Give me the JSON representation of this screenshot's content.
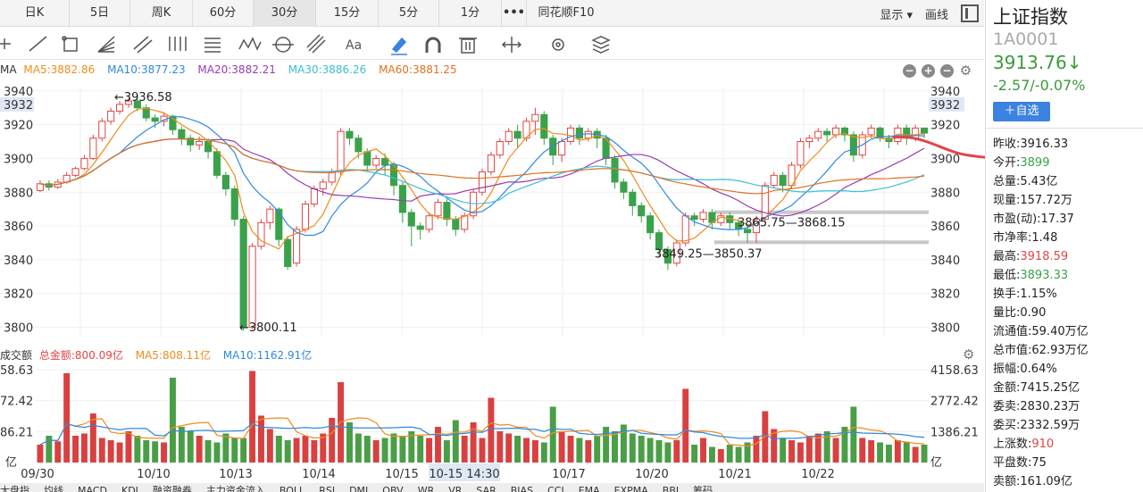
{
  "periods": [
    {
      "label": "日K"
    },
    {
      "label": "5日"
    },
    {
      "label": "周K"
    },
    {
      "label": "60分"
    },
    {
      "label": "30分",
      "active": true
    },
    {
      "label": "15分"
    },
    {
      "label": "5分"
    },
    {
      "label": "1分"
    },
    {
      "label": "•••"
    },
    {
      "label": "同花顺F10"
    }
  ],
  "header_right": {
    "display": "显示 ▾",
    "draw": "画线"
  },
  "tool_icons": [
    "ray-line-icon",
    "segment-icon",
    "rectangle-icon",
    "fan-icon",
    "channel-icon",
    "parallel-lines-icon",
    "fibonacci-icon",
    "wave-icon",
    "cycle-icon",
    "pitchfork-icon",
    "text-icon",
    "eraser-icon",
    "magnet-icon",
    "trash-icon",
    "resize-icon",
    "settings-icon",
    "layers-icon"
  ],
  "ma_legend": {
    "prefix": "MA",
    "items": [
      {
        "label": "MA5:3882.86",
        "color": "#f08c1e"
      },
      {
        "label": "MA10:3877.23",
        "color": "#2f8ae0"
      },
      {
        "label": "MA20:3882.21",
        "color": "#9b3bb0"
      },
      {
        "label": "MA30:3886.26",
        "color": "#3cc0d0"
      },
      {
        "label": "MA60:3881.25",
        "color": "#e07020"
      }
    ]
  },
  "vol_legend": {
    "title": "成交额",
    "items": [
      {
        "label": "总金额:800.09亿",
        "color": "#e04646"
      },
      {
        "label": "MA5:808.11亿",
        "color": "#f08c1e"
      },
      {
        "label": "MA10:1162.91亿",
        "color": "#2f8ae0"
      }
    ]
  },
  "chart_data": {
    "type": "candlestick",
    "y_ticks": [
      "3940",
      "3932",
      "3920",
      "3900",
      "3880",
      "3860",
      "3840",
      "3820",
      "3800"
    ],
    "ylim": [
      3795,
      3942
    ],
    "highlight_tick": "3932",
    "x_labels": [
      "09/30",
      "10/10",
      "10/13",
      "10/14",
      "10/15",
      "10-15 14:30",
      "10/17",
      "10/20",
      "10/21",
      "10/22"
    ],
    "annotations": [
      {
        "text": "←3936.58"
      },
      {
        "text": "←3800.11"
      },
      {
        "text": "3865.75—3868.15"
      },
      {
        "text": "3849.25—3850.37"
      }
    ],
    "support_levels": [
      3868.15,
      3850.37
    ],
    "candles": [
      [
        3881,
        3885,
        3880,
        3887
      ],
      [
        3885,
        3883,
        3881,
        3887
      ],
      [
        3883,
        3886,
        3882,
        3888
      ],
      [
        3886,
        3890,
        3885,
        3892
      ],
      [
        3890,
        3894,
        3889,
        3895
      ],
      [
        3894,
        3900,
        3893,
        3902
      ],
      [
        3900,
        3912,
        3899,
        3914
      ],
      [
        3912,
        3922,
        3910,
        3924
      ],
      [
        3922,
        3928,
        3920,
        3930
      ],
      [
        3928,
        3932,
        3926,
        3934
      ],
      [
        3932,
        3934,
        3930,
        3936
      ],
      [
        3934,
        3930,
        3928,
        3936
      ],
      [
        3930,
        3924,
        3922,
        3932
      ],
      [
        3924,
        3922,
        3918,
        3926
      ],
      [
        3922,
        3925,
        3919,
        3927
      ],
      [
        3925,
        3917,
        3914,
        3926
      ],
      [
        3917,
        3912,
        3908,
        3919
      ],
      [
        3912,
        3908,
        3904,
        3914
      ],
      [
        3908,
        3910,
        3905,
        3913
      ],
      [
        3910,
        3904,
        3900,
        3912
      ],
      [
        3904,
        3890,
        3888,
        3906
      ],
      [
        3890,
        3882,
        3878,
        3892
      ],
      [
        3882,
        3864,
        3860,
        3884
      ],
      [
        3864,
        3800,
        3798,
        3866
      ],
      [
        3800,
        3848,
        3799,
        3850
      ],
      [
        3848,
        3862,
        3846,
        3864
      ],
      [
        3862,
        3870,
        3858,
        3872
      ],
      [
        3870,
        3852,
        3848,
        3871
      ],
      [
        3852,
        3836,
        3834,
        3854
      ],
      [
        3838,
        3858,
        3836,
        3860
      ],
      [
        3858,
        3873,
        3856,
        3875
      ],
      [
        3873,
        3882,
        3871,
        3884
      ],
      [
        3882,
        3886,
        3878,
        3888
      ],
      [
        3886,
        3892,
        3884,
        3894
      ],
      [
        3892,
        3916,
        3890,
        3918
      ],
      [
        3916,
        3912,
        3908,
        3918
      ],
      [
        3912,
        3904,
        3900,
        3914
      ],
      [
        3904,
        3896,
        3892,
        3906
      ],
      [
        3896,
        3900,
        3894,
        3902
      ],
      [
        3900,
        3896,
        3890,
        3903
      ],
      [
        3896,
        3884,
        3878,
        3898
      ],
      [
        3884,
        3868,
        3862,
        3886
      ],
      [
        3868,
        3860,
        3848,
        3870
      ],
      [
        3860,
        3858,
        3852,
        3862
      ],
      [
        3858,
        3866,
        3856,
        3868
      ],
      [
        3866,
        3874,
        3864,
        3876
      ],
      [
        3874,
        3864,
        3860,
        3876
      ],
      [
        3864,
        3858,
        3854,
        3866
      ],
      [
        3858,
        3866,
        3856,
        3868
      ],
      [
        3866,
        3880,
        3864,
        3882
      ],
      [
        3880,
        3892,
        3878,
        3894
      ],
      [
        3892,
        3902,
        3890,
        3904
      ],
      [
        3902,
        3910,
        3900,
        3912
      ],
      [
        3910,
        3916,
        3908,
        3918
      ],
      [
        3916,
        3912,
        3906,
        3920
      ],
      [
        3912,
        3922,
        3910,
        3924
      ],
      [
        3922,
        3926,
        3914,
        3930
      ],
      [
        3926,
        3912,
        3908,
        3928
      ],
      [
        3912,
        3902,
        3896,
        3914
      ],
      [
        3902,
        3910,
        3898,
        3912
      ],
      [
        3910,
        3918,
        3908,
        3920
      ],
      [
        3918,
        3912,
        3908,
        3920
      ],
      [
        3912,
        3916,
        3910,
        3918
      ],
      [
        3916,
        3912,
        3906,
        3918
      ],
      [
        3912,
        3900,
        3896,
        3914
      ],
      [
        3900,
        3886,
        3882,
        3902
      ],
      [
        3886,
        3880,
        3876,
        3888
      ],
      [
        3880,
        3872,
        3866,
        3882
      ],
      [
        3872,
        3866,
        3862,
        3874
      ],
      [
        3866,
        3856,
        3852,
        3868
      ],
      [
        3856,
        3846,
        3842,
        3858
      ],
      [
        3846,
        3838,
        3834,
        3848
      ],
      [
        3838,
        3850,
        3836,
        3852
      ],
      [
        3850,
        3866,
        3848,
        3868
      ],
      [
        3866,
        3864,
        3860,
        3868
      ],
      [
        3864,
        3868,
        3862,
        3870
      ],
      [
        3868,
        3862,
        3858,
        3870
      ],
      [
        3862,
        3866,
        3860,
        3868
      ],
      [
        3866,
        3862,
        3858,
        3868
      ],
      [
        3862,
        3858,
        3854,
        3864
      ],
      [
        3858,
        3856,
        3850,
        3860
      ],
      [
        3856,
        3864,
        3850,
        3866
      ],
      [
        3864,
        3884,
        3862,
        3886
      ],
      [
        3884,
        3890,
        3882,
        3892
      ],
      [
        3890,
        3884,
        3880,
        3892
      ],
      [
        3884,
        3896,
        3882,
        3898
      ],
      [
        3896,
        3910,
        3894,
        3912
      ],
      [
        3910,
        3912,
        3906,
        3914
      ],
      [
        3912,
        3916,
        3910,
        3918
      ],
      [
        3916,
        3914,
        3910,
        3918
      ],
      [
        3914,
        3918,
        3912,
        3920
      ],
      [
        3918,
        3914,
        3910,
        3919
      ],
      [
        3914,
        3902,
        3898,
        3916
      ],
      [
        3902,
        3914,
        3900,
        3916
      ],
      [
        3914,
        3918,
        3912,
        3920
      ],
      [
        3918,
        3912,
        3910,
        3919
      ],
      [
        3912,
        3910,
        3906,
        3914
      ],
      [
        3910,
        3918,
        3908,
        3920
      ],
      [
        3918,
        3912,
        3908,
        3920
      ],
      [
        3912,
        3918,
        3910,
        3920
      ],
      [
        3918,
        3915,
        3912,
        3918
      ]
    ],
    "volume": {
      "y_ticks": [
        "4158.63",
        "2772.42",
        "1386.21"
      ],
      "unit": "亿",
      "left_ticks": [
        "58.63",
        "72.42",
        "86.21",
        "亿"
      ],
      "ylim": [
        0,
        4158.63
      ],
      "values": [
        800,
        1200,
        950,
        4000,
        1200,
        1300,
        2200,
        1100,
        1000,
        900,
        1400,
        1200,
        1000,
        950,
        900,
        3800,
        1600,
        1400,
        1200,
        1000,
        900,
        1300,
        1100,
        1100,
        4100,
        2100,
        1500,
        1200,
        1000,
        1100,
        1200,
        1000,
        1300,
        2000,
        3600,
        1800,
        1300,
        1200,
        1000,
        1100,
        1300,
        1200,
        1400,
        1200,
        1100,
        1600,
        1000,
        1900,
        1200,
        1800,
        1100,
        2900,
        1400,
        1300,
        1200,
        1100,
        1000,
        900,
        2500,
        1400,
        1200,
        1100,
        1000,
        1200,
        1600,
        1400,
        1700,
        1300,
        1200,
        1100,
        1000,
        900,
        1000,
        3300,
        800,
        1100,
        700,
        600,
        800,
        700,
        900,
        1200,
        2300,
        1500,
        1100,
        1000,
        900,
        1200,
        1300,
        1400,
        1100,
        1600,
        2500,
        1100,
        1000,
        900,
        800,
        1000,
        900,
        700,
        800
      ]
    }
  },
  "side": {
    "name": "上证指数",
    "code": "1A0001",
    "price": "3913.76↓",
    "change": "-2.57/-0.07%",
    "add_label": "＋自选",
    "stats": [
      {
        "label": "昨收:",
        "value": "3916.33",
        "color": ""
      },
      {
        "label": "今开:",
        "value": "3899",
        "color": "green"
      },
      {
        "label": "总量:",
        "value": "5.43亿",
        "color": ""
      },
      {
        "label": "现量:",
        "value": "157.72万",
        "color": ""
      },
      {
        "label": "市盈(动):",
        "value": "17.37",
        "color": ""
      },
      {
        "label": "市净率:",
        "value": "1.48",
        "color": ""
      },
      {
        "label": "最高:",
        "value": "3918.59",
        "color": "red"
      },
      {
        "label": "最低:",
        "value": "3893.33",
        "color": "green"
      },
      {
        "label": "换手:",
        "value": "1.15%",
        "color": ""
      },
      {
        "label": "量比:",
        "value": "0.90",
        "color": ""
      },
      {
        "label": "流通值:",
        "value": "59.40万亿",
        "color": ""
      },
      {
        "label": "总市值:",
        "value": "62.93万亿",
        "color": ""
      },
      {
        "label": "振幅:",
        "value": "0.64%",
        "color": ""
      },
      {
        "label": "金额:",
        "value": "7415.25亿",
        "color": ""
      },
      {
        "label": "委卖:",
        "value": "2830.23万",
        "color": ""
      },
      {
        "label": "委买:",
        "value": "2332.59万",
        "color": ""
      },
      {
        "label": "上涨数:",
        "value": "910",
        "color": "red"
      },
      {
        "label": "平盘数:",
        "value": "75",
        "color": ""
      },
      {
        "label": "卖额:",
        "value": "161.09亿",
        "color": ""
      }
    ]
  },
  "bottom_tabs": [
    "大盘指",
    "均线",
    "MACD",
    "KDJ",
    "融资融券",
    "主力资金流入",
    "BOLL",
    "RSI",
    "DMI",
    "OBV",
    "WR",
    "VR",
    "SAR",
    "BIAS",
    "CCI",
    "EMA",
    "EXPMA",
    "BBI",
    "筹码"
  ]
}
